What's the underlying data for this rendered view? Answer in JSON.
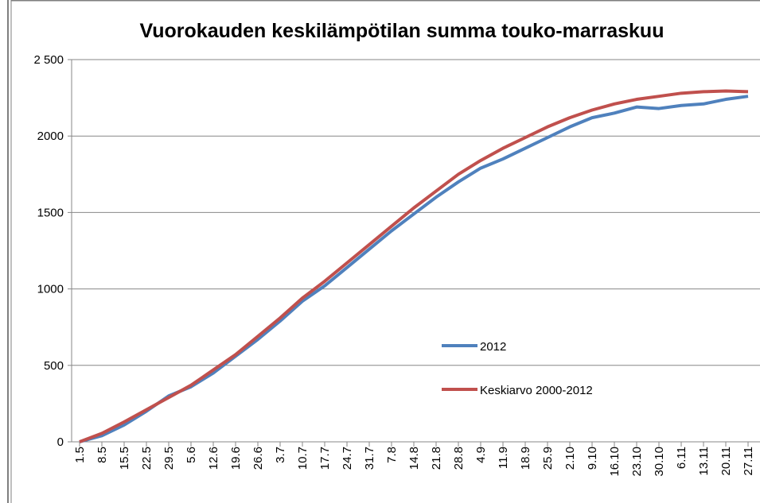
{
  "chart_data": {
    "type": "line",
    "title": "Vuorokauden keskilämpötilan summa touko-marraskuu",
    "categories": [
      "1.5",
      "8.5",
      "15.5",
      "22.5",
      "29.5",
      "5.6",
      "12.6",
      "19.6",
      "26.6",
      "3.7",
      "10.7",
      "17.7",
      "24.7",
      "31.7",
      "7.8",
      "14.8",
      "21.8",
      "28.8",
      "4.9",
      "11.9",
      "18.9",
      "25.9",
      "2.10",
      "9.10",
      "16.10",
      "23.10",
      "30.10",
      "6.11",
      "13.11",
      "20.11",
      "27.11"
    ],
    "series": [
      {
        "name": "2012",
        "color": "#4f81bd",
        "values": [
          0,
          40,
          110,
          200,
          300,
          360,
          450,
          560,
          670,
          790,
          920,
          1020,
          1140,
          1260,
          1380,
          1490,
          1600,
          1700,
          1790,
          1850,
          1920,
          1990,
          2060,
          2120,
          2150,
          2190,
          2180,
          2200,
          2210,
          2240,
          2260
        ]
      },
      {
        "name": "Keskiarvo 2000-2012",
        "color": "#c0504d",
        "values": [
          0,
          55,
          130,
          210,
          290,
          370,
          470,
          570,
          690,
          810,
          940,
          1050,
          1170,
          1290,
          1410,
          1530,
          1640,
          1750,
          1840,
          1920,
          1990,
          2060,
          2120,
          2170,
          2210,
          2240,
          2260,
          2280,
          2290,
          2295,
          2290
        ]
      }
    ],
    "ylim": [
      0,
      2500
    ],
    "yticks": [
      0,
      500,
      1000,
      1500,
      {
        "value": 2000,
        "label": "2000"
      },
      {
        "value": 2500,
        "label": "2 500"
      }
    ],
    "grid": true
  }
}
